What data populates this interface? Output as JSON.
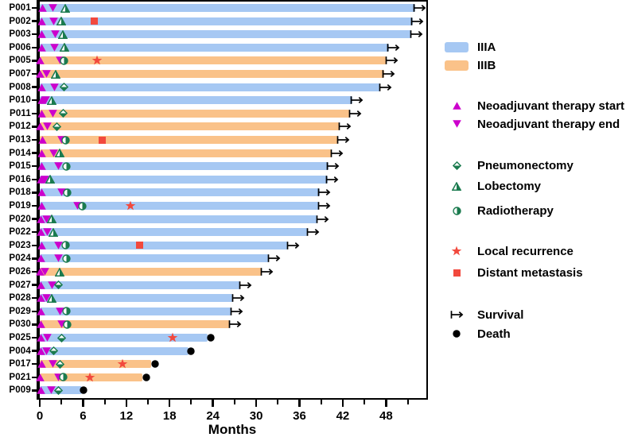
{
  "chart_data": {
    "type": "swimmer-bar",
    "title": "",
    "xlabel": "Months",
    "x_ticks": [
      0,
      6,
      12,
      18,
      24,
      30,
      36,
      42,
      48
    ],
    "x_minor_ticks": [
      3,
      9,
      15,
      21,
      27,
      33,
      39,
      45,
      51
    ],
    "xlim": [
      0,
      53.5
    ],
    "grid": false,
    "legend_position": "right",
    "colors": {
      "stage_iiia": "#A6C8F3",
      "stage_iiib": "#FAC289",
      "neoadjuvant": "#CC00CC",
      "surgery": "#1B7B4F",
      "recurrence": "#F2493D",
      "outcome": "#000000"
    },
    "patients": [
      {
        "id": "P001",
        "stage": "IIIA",
        "months": 52.0,
        "outcome": "survival",
        "events": [
          {
            "type": "neoadjuvant-start",
            "month": 0.4
          },
          {
            "type": "neoadjuvant-end",
            "month": 1.8
          },
          {
            "type": "lobectomy",
            "month": 3.5
          }
        ]
      },
      {
        "id": "P002",
        "stage": "IIIA",
        "months": 51.7,
        "outcome": "survival",
        "events": [
          {
            "type": "neoadjuvant-start",
            "month": 0.3
          },
          {
            "type": "neoadjuvant-end",
            "month": 1.9
          },
          {
            "type": "lobectomy",
            "month": 3.0
          },
          {
            "type": "distant-metastasis",
            "month": 7.6
          }
        ]
      },
      {
        "id": "P003",
        "stage": "IIIA",
        "months": 51.5,
        "outcome": "survival",
        "events": [
          {
            "type": "neoadjuvant-start",
            "month": 0.3
          },
          {
            "type": "neoadjuvant-end",
            "month": 2.1
          },
          {
            "type": "lobectomy",
            "month": 3.2
          }
        ]
      },
      {
        "id": "P006",
        "stage": "IIIA",
        "months": 48.4,
        "outcome": "survival",
        "events": [
          {
            "type": "neoadjuvant-start",
            "month": 0.3
          },
          {
            "type": "neoadjuvant-end",
            "month": 2.0
          },
          {
            "type": "lobectomy",
            "month": 3.4
          }
        ]
      },
      {
        "id": "P005",
        "stage": "IIIB",
        "months": 48.1,
        "outcome": "survival",
        "events": [
          {
            "type": "neoadjuvant-start",
            "month": 0.1
          },
          {
            "type": "neoadjuvant-end",
            "month": 2.8
          },
          {
            "type": "radiotherapy",
            "month": 3.4
          },
          {
            "type": "local-recurrence",
            "month": 7.9
          }
        ]
      },
      {
        "id": "P007",
        "stage": "IIIB",
        "months": 47.7,
        "outcome": "survival",
        "events": [
          {
            "type": "neoadjuvant-start",
            "month": 0.1
          },
          {
            "type": "neoadjuvant-end",
            "month": 0.9
          },
          {
            "type": "lobectomy",
            "month": 2.2
          }
        ]
      },
      {
        "id": "P008",
        "stage": "IIIA",
        "months": 47.2,
        "outcome": "survival",
        "events": [
          {
            "type": "neoadjuvant-start",
            "month": 0.3
          },
          {
            "type": "neoadjuvant-end",
            "month": 2.0
          },
          {
            "type": "pneumonectomy",
            "month": 3.4
          }
        ]
      },
      {
        "id": "P010",
        "stage": "IIIA",
        "months": 43.3,
        "outcome": "survival",
        "events": [
          {
            "type": "neoadjuvant-start",
            "month": 0.3
          },
          {
            "type": "neoadjuvant-end",
            "month": 0.8
          },
          {
            "type": "lobectomy",
            "month": 1.7
          }
        ]
      },
      {
        "id": "P011",
        "stage": "IIIB",
        "months": 43.0,
        "outcome": "survival",
        "events": [
          {
            "type": "neoadjuvant-start",
            "month": 0.3
          },
          {
            "type": "neoadjuvant-end",
            "month": 1.8
          },
          {
            "type": "pneumonectomy",
            "month": 3.2
          }
        ]
      },
      {
        "id": "P012",
        "stage": "IIIB",
        "months": 41.6,
        "outcome": "survival",
        "events": [
          {
            "type": "neoadjuvant-start",
            "month": 0.1
          },
          {
            "type": "neoadjuvant-end",
            "month": 1.0
          },
          {
            "type": "pneumonectomy",
            "month": 2.4
          }
        ]
      },
      {
        "id": "P013",
        "stage": "IIIB",
        "months": 41.4,
        "outcome": "survival",
        "events": [
          {
            "type": "neoadjuvant-start",
            "month": 0.4
          },
          {
            "type": "neoadjuvant-end",
            "month": 3.0
          },
          {
            "type": "radiotherapy",
            "month": 3.6
          },
          {
            "type": "distant-metastasis",
            "month": 8.6
          }
        ]
      },
      {
        "id": "P014",
        "stage": "IIIB",
        "months": 40.5,
        "outcome": "survival",
        "events": [
          {
            "type": "neoadjuvant-start",
            "month": 0.3
          },
          {
            "type": "neoadjuvant-end",
            "month": 1.9
          },
          {
            "type": "lobectomy",
            "month": 2.8
          }
        ]
      },
      {
        "id": "P015",
        "stage": "IIIA",
        "months": 40.0,
        "outcome": "survival",
        "events": [
          {
            "type": "neoadjuvant-start",
            "month": 0.3
          },
          {
            "type": "neoadjuvant-end",
            "month": 2.6
          },
          {
            "type": "radiotherapy",
            "month": 3.7
          }
        ]
      },
      {
        "id": "P016",
        "stage": "IIIA",
        "months": 39.9,
        "outcome": "survival",
        "events": [
          {
            "type": "neoadjuvant-start",
            "month": 0.2
          },
          {
            "type": "neoadjuvant-end",
            "month": 0.7
          },
          {
            "type": "lobectomy",
            "month": 1.4
          }
        ]
      },
      {
        "id": "P018",
        "stage": "IIIA",
        "months": 38.8,
        "outcome": "survival",
        "events": [
          {
            "type": "neoadjuvant-start",
            "month": 0.3
          },
          {
            "type": "neoadjuvant-end",
            "month": 3.0
          },
          {
            "type": "radiotherapy",
            "month": 3.8
          }
        ]
      },
      {
        "id": "P019",
        "stage": "IIIA",
        "months": 38.7,
        "outcome": "survival",
        "events": [
          {
            "type": "neoadjuvant-start",
            "month": 0.3
          },
          {
            "type": "neoadjuvant-end",
            "month": 5.2
          },
          {
            "type": "radiotherapy",
            "month": 5.9
          },
          {
            "type": "local-recurrence",
            "month": 12.6
          }
        ]
      },
      {
        "id": "P020",
        "stage": "IIIA",
        "months": 38.5,
        "outcome": "survival",
        "events": [
          {
            "type": "neoadjuvant-start",
            "month": 0.2
          },
          {
            "type": "neoadjuvant-end",
            "month": 0.9
          },
          {
            "type": "lobectomy",
            "month": 1.7
          }
        ]
      },
      {
        "id": "P022",
        "stage": "IIIA",
        "months": 37.2,
        "outcome": "survival",
        "events": [
          {
            "type": "neoadjuvant-start",
            "month": 0.2
          },
          {
            "type": "neoadjuvant-end",
            "month": 1.0
          },
          {
            "type": "lobectomy",
            "month": 1.9
          }
        ]
      },
      {
        "id": "P023",
        "stage": "IIIA",
        "months": 34.4,
        "outcome": "survival",
        "events": [
          {
            "type": "neoadjuvant-start",
            "month": 0.3
          },
          {
            "type": "neoadjuvant-end",
            "month": 2.6
          },
          {
            "type": "radiotherapy",
            "month": 3.6
          },
          {
            "type": "distant-metastasis",
            "month": 13.8
          }
        ]
      },
      {
        "id": "P024",
        "stage": "IIIA",
        "months": 31.8,
        "outcome": "survival",
        "events": [
          {
            "type": "neoadjuvant-start",
            "month": 0.2
          },
          {
            "type": "neoadjuvant-end",
            "month": 2.6
          },
          {
            "type": "radiotherapy",
            "month": 3.7
          }
        ]
      },
      {
        "id": "P026",
        "stage": "IIIB",
        "months": 30.8,
        "outcome": "survival",
        "events": [
          {
            "type": "neoadjuvant-start",
            "month": 0.1
          },
          {
            "type": "neoadjuvant-end",
            "month": 0.7
          },
          {
            "type": "lobectomy",
            "month": 2.8
          }
        ]
      },
      {
        "id": "P027",
        "stage": "IIIA",
        "months": 27.8,
        "outcome": "survival",
        "events": [
          {
            "type": "neoadjuvant-start",
            "month": 0.2
          },
          {
            "type": "neoadjuvant-end",
            "month": 1.7
          },
          {
            "type": "pneumonectomy",
            "month": 2.6
          }
        ]
      },
      {
        "id": "P028",
        "stage": "IIIA",
        "months": 26.8,
        "outcome": "survival",
        "events": [
          {
            "type": "neoadjuvant-start",
            "month": 0.2
          },
          {
            "type": "neoadjuvant-end",
            "month": 0.9
          },
          {
            "type": "lobectomy",
            "month": 1.7
          }
        ]
      },
      {
        "id": "P029",
        "stage": "IIIA",
        "months": 26.6,
        "outcome": "survival",
        "events": [
          {
            "type": "neoadjuvant-start",
            "month": 0.2
          },
          {
            "type": "neoadjuvant-end",
            "month": 2.8
          },
          {
            "type": "radiotherapy",
            "month": 3.7
          }
        ]
      },
      {
        "id": "P030",
        "stage": "IIIB",
        "months": 26.4,
        "outcome": "survival",
        "events": [
          {
            "type": "neoadjuvant-start",
            "month": 0.2
          },
          {
            "type": "neoadjuvant-end",
            "month": 3.0
          },
          {
            "type": "radiotherapy",
            "month": 3.8
          }
        ]
      },
      {
        "id": "P025",
        "stage": "IIIA",
        "months": 23.3,
        "outcome": "death",
        "events": [
          {
            "type": "neoadjuvant-start",
            "month": 0.2
          },
          {
            "type": "neoadjuvant-end",
            "month": 1.0
          },
          {
            "type": "pneumonectomy",
            "month": 3.0
          },
          {
            "type": "local-recurrence",
            "month": 18.4
          },
          {
            "type": "death",
            "month": 23.7
          }
        ]
      },
      {
        "id": "P004",
        "stage": "IIIA",
        "months": 20.6,
        "outcome": "death",
        "events": [
          {
            "type": "neoadjuvant-start",
            "month": 0.2
          },
          {
            "type": "neoadjuvant-end",
            "month": 0.9
          },
          {
            "type": "pneumonectomy",
            "month": 1.9
          },
          {
            "type": "death",
            "month": 21.0
          }
        ]
      },
      {
        "id": "P017",
        "stage": "IIIB",
        "months": 15.4,
        "outcome": "death",
        "events": [
          {
            "type": "neoadjuvant-start",
            "month": 0.3
          },
          {
            "type": "neoadjuvant-end",
            "month": 1.8
          },
          {
            "type": "pneumonectomy",
            "month": 2.8
          },
          {
            "type": "local-recurrence",
            "month": 11.5
          },
          {
            "type": "death",
            "month": 16.0
          }
        ]
      },
      {
        "id": "P021",
        "stage": "IIIB",
        "months": 14.2,
        "outcome": "death",
        "events": [
          {
            "type": "neoadjuvant-start",
            "month": 0.1
          },
          {
            "type": "neoadjuvant-end",
            "month": 2.6
          },
          {
            "type": "radiotherapy",
            "month": 3.2
          },
          {
            "type": "local-recurrence",
            "month": 7.0
          },
          {
            "type": "death",
            "month": 14.8
          }
        ]
      },
      {
        "id": "P009",
        "stage": "IIIA",
        "months": 5.8,
        "outcome": "death",
        "events": [
          {
            "type": "neoadjuvant-start",
            "month": 0.2
          },
          {
            "type": "neoadjuvant-end",
            "month": 1.6
          },
          {
            "type": "pneumonectomy",
            "month": 2.6
          },
          {
            "type": "death",
            "month": 6.1
          }
        ]
      }
    ]
  },
  "legend": {
    "items": [
      {
        "type": "stage-iiia",
        "label": "IIIA"
      },
      {
        "type": "stage-iiib",
        "label": "IIIB"
      },
      {
        "type": "neoadjuvant-start",
        "label": "Neoadjuvant therapy start"
      },
      {
        "type": "neoadjuvant-end",
        "label": "Neoadjuvant therapy end"
      },
      {
        "type": "pneumonectomy",
        "label": "Pneumonectomy"
      },
      {
        "type": "lobectomy",
        "label": "Lobectomy"
      },
      {
        "type": "radiotherapy",
        "label": "Radiotherapy"
      },
      {
        "type": "local-recurrence",
        "label": "Local recurrence"
      },
      {
        "type": "distant-metastasis",
        "label": "Distant metastasis"
      },
      {
        "type": "survival",
        "label": "Survival"
      },
      {
        "type": "death",
        "label": "Death"
      }
    ]
  }
}
